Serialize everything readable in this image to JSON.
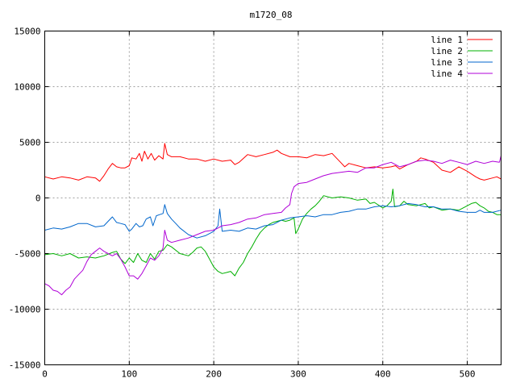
{
  "chart_data": {
    "type": "line",
    "title": "m1720_08",
    "xlabel": "",
    "ylabel": "",
    "xlim": [
      0,
      540
    ],
    "ylim": [
      -15000,
      15000
    ],
    "xticks": [
      0,
      100,
      200,
      300,
      400,
      500
    ],
    "yticks": [
      -15000,
      -10000,
      -5000,
      0,
      5000,
      10000,
      15000
    ],
    "grid": true,
    "legend_position": "top-right",
    "series": [
      {
        "name": "line 1",
        "color": "#ff0000",
        "points": [
          [
            0,
            1900
          ],
          [
            10,
            1700
          ],
          [
            20,
            1900
          ],
          [
            30,
            1800
          ],
          [
            40,
            1600
          ],
          [
            50,
            1900
          ],
          [
            60,
            1800
          ],
          [
            65,
            1500
          ],
          [
            70,
            2000
          ],
          [
            75,
            2600
          ],
          [
            80,
            3100
          ],
          [
            85,
            2800
          ],
          [
            90,
            2700
          ],
          [
            95,
            2700
          ],
          [
            100,
            2900
          ],
          [
            103,
            3600
          ],
          [
            108,
            3500
          ],
          [
            112,
            4000
          ],
          [
            115,
            3300
          ],
          [
            118,
            4200
          ],
          [
            122,
            3500
          ],
          [
            126,
            4000
          ],
          [
            130,
            3400
          ],
          [
            135,
            3800
          ],
          [
            140,
            3500
          ],
          [
            142,
            4900
          ],
          [
            145,
            3900
          ],
          [
            150,
            3700
          ],
          [
            160,
            3700
          ],
          [
            170,
            3500
          ],
          [
            180,
            3500
          ],
          [
            190,
            3300
          ],
          [
            200,
            3500
          ],
          [
            210,
            3300
          ],
          [
            220,
            3400
          ],
          [
            225,
            3000
          ],
          [
            230,
            3200
          ],
          [
            240,
            3900
          ],
          [
            250,
            3700
          ],
          [
            260,
            3900
          ],
          [
            270,
            4100
          ],
          [
            275,
            4300
          ],
          [
            280,
            4000
          ],
          [
            290,
            3700
          ],
          [
            300,
            3700
          ],
          [
            310,
            3600
          ],
          [
            320,
            3900
          ],
          [
            330,
            3800
          ],
          [
            340,
            4000
          ],
          [
            345,
            3600
          ],
          [
            350,
            3200
          ],
          [
            355,
            2800
          ],
          [
            360,
            3100
          ],
          [
            370,
            2900
          ],
          [
            380,
            2700
          ],
          [
            390,
            2800
          ],
          [
            400,
            2700
          ],
          [
            410,
            2800
          ],
          [
            415,
            2900
          ],
          [
            420,
            2600
          ],
          [
            430,
            3000
          ],
          [
            440,
            3300
          ],
          [
            445,
            3600
          ],
          [
            450,
            3500
          ],
          [
            460,
            3200
          ],
          [
            470,
            2500
          ],
          [
            480,
            2300
          ],
          [
            490,
            2800
          ],
          [
            500,
            2400
          ],
          [
            510,
            1900
          ],
          [
            515,
            1700
          ],
          [
            520,
            1600
          ],
          [
            530,
            1800
          ],
          [
            535,
            1900
          ],
          [
            540,
            1700
          ]
        ]
      },
      {
        "name": "line 2",
        "color": "#00b000",
        "points": [
          [
            0,
            -5100
          ],
          [
            10,
            -5000
          ],
          [
            20,
            -5200
          ],
          [
            30,
            -5000
          ],
          [
            40,
            -5400
          ],
          [
            50,
            -5300
          ],
          [
            60,
            -5400
          ],
          [
            70,
            -5200
          ],
          [
            80,
            -4900
          ],
          [
            85,
            -4800
          ],
          [
            90,
            -5500
          ],
          [
            95,
            -5900
          ],
          [
            100,
            -5400
          ],
          [
            105,
            -5800
          ],
          [
            110,
            -5000
          ],
          [
            115,
            -5600
          ],
          [
            120,
            -5800
          ],
          [
            125,
            -5000
          ],
          [
            130,
            -5500
          ],
          [
            135,
            -4800
          ],
          [
            140,
            -4700
          ],
          [
            145,
            -4200
          ],
          [
            150,
            -4400
          ],
          [
            160,
            -5000
          ],
          [
            170,
            -5200
          ],
          [
            175,
            -4900
          ],
          [
            180,
            -4500
          ],
          [
            185,
            -4400
          ],
          [
            190,
            -4800
          ],
          [
            195,
            -5500
          ],
          [
            200,
            -6200
          ],
          [
            205,
            -6600
          ],
          [
            210,
            -6800
          ],
          [
            215,
            -6700
          ],
          [
            220,
            -6600
          ],
          [
            225,
            -7000
          ],
          [
            230,
            -6300
          ],
          [
            235,
            -5800
          ],
          [
            240,
            -5000
          ],
          [
            245,
            -4400
          ],
          [
            250,
            -3700
          ],
          [
            255,
            -3100
          ],
          [
            260,
            -2700
          ],
          [
            265,
            -2400
          ],
          [
            270,
            -2200
          ],
          [
            275,
            -2100
          ],
          [
            280,
            -2000
          ],
          [
            285,
            -2100
          ],
          [
            290,
            -2000
          ],
          [
            295,
            -1800
          ],
          [
            297,
            -3200
          ],
          [
            300,
            -2800
          ],
          [
            305,
            -1900
          ],
          [
            310,
            -1400
          ],
          [
            315,
            -1000
          ],
          [
            320,
            -700
          ],
          [
            325,
            -300
          ],
          [
            330,
            200
          ],
          [
            340,
            0
          ],
          [
            350,
            100
          ],
          [
            360,
            0
          ],
          [
            370,
            -200
          ],
          [
            380,
            -100
          ],
          [
            385,
            -500
          ],
          [
            390,
            -400
          ],
          [
            400,
            -900
          ],
          [
            405,
            -700
          ],
          [
            410,
            -300
          ],
          [
            412,
            800
          ],
          [
            414,
            -800
          ],
          [
            420,
            -700
          ],
          [
            425,
            -300
          ],
          [
            430,
            -600
          ],
          [
            440,
            -700
          ],
          [
            450,
            -500
          ],
          [
            455,
            -900
          ],
          [
            460,
            -800
          ],
          [
            470,
            -1100
          ],
          [
            480,
            -1000
          ],
          [
            490,
            -1100
          ],
          [
            500,
            -700
          ],
          [
            505,
            -500
          ],
          [
            510,
            -400
          ],
          [
            515,
            -700
          ],
          [
            520,
            -900
          ],
          [
            525,
            -1200
          ],
          [
            530,
            -1300
          ],
          [
            535,
            -1500
          ],
          [
            540,
            -1500
          ]
        ]
      },
      {
        "name": "line 3",
        "color": "#0066cc",
        "points": [
          [
            0,
            -2900
          ],
          [
            10,
            -2700
          ],
          [
            20,
            -2800
          ],
          [
            30,
            -2600
          ],
          [
            40,
            -2300
          ],
          [
            50,
            -2300
          ],
          [
            60,
            -2600
          ],
          [
            70,
            -2500
          ],
          [
            75,
            -2100
          ],
          [
            80,
            -1700
          ],
          [
            85,
            -2200
          ],
          [
            90,
            -2300
          ],
          [
            95,
            -2400
          ],
          [
            100,
            -3000
          ],
          [
            103,
            -2800
          ],
          [
            108,
            -2300
          ],
          [
            112,
            -2600
          ],
          [
            116,
            -2500
          ],
          [
            120,
            -1900
          ],
          [
            125,
            -1700
          ],
          [
            128,
            -2500
          ],
          [
            132,
            -1600
          ],
          [
            136,
            -1500
          ],
          [
            140,
            -1400
          ],
          [
            142,
            -600
          ],
          [
            145,
            -1400
          ],
          [
            150,
            -1900
          ],
          [
            155,
            -2300
          ],
          [
            160,
            -2700
          ],
          [
            170,
            -3300
          ],
          [
            180,
            -3600
          ],
          [
            190,
            -3400
          ],
          [
            200,
            -3000
          ],
          [
            205,
            -2500
          ],
          [
            207,
            -1000
          ],
          [
            210,
            -3000
          ],
          [
            220,
            -2900
          ],
          [
            230,
            -3000
          ],
          [
            240,
            -2700
          ],
          [
            250,
            -2800
          ],
          [
            260,
            -2500
          ],
          [
            270,
            -2400
          ],
          [
            280,
            -2000
          ],
          [
            290,
            -1800
          ],
          [
            300,
            -1700
          ],
          [
            310,
            -1600
          ],
          [
            320,
            -1700
          ],
          [
            330,
            -1500
          ],
          [
            340,
            -1500
          ],
          [
            350,
            -1300
          ],
          [
            360,
            -1200
          ],
          [
            370,
            -1000
          ],
          [
            380,
            -1000
          ],
          [
            390,
            -800
          ],
          [
            400,
            -700
          ],
          [
            410,
            -800
          ],
          [
            420,
            -700
          ],
          [
            430,
            -500
          ],
          [
            440,
            -600
          ],
          [
            450,
            -800
          ],
          [
            460,
            -800
          ],
          [
            470,
            -1000
          ],
          [
            480,
            -1000
          ],
          [
            490,
            -1200
          ],
          [
            500,
            -1300
          ],
          [
            510,
            -1300
          ],
          [
            515,
            -1100
          ],
          [
            520,
            -1300
          ],
          [
            530,
            -1300
          ],
          [
            540,
            -1100
          ]
        ]
      },
      {
        "name": "line 4",
        "color": "#b000d8",
        "points": [
          [
            0,
            -7700
          ],
          [
            5,
            -7900
          ],
          [
            10,
            -8300
          ],
          [
            15,
            -8400
          ],
          [
            20,
            -8700
          ],
          [
            25,
            -8300
          ],
          [
            30,
            -8000
          ],
          [
            35,
            -7300
          ],
          [
            40,
            -6900
          ],
          [
            45,
            -6500
          ],
          [
            50,
            -5700
          ],
          [
            55,
            -5100
          ],
          [
            60,
            -4800
          ],
          [
            65,
            -4500
          ],
          [
            70,
            -4800
          ],
          [
            75,
            -5000
          ],
          [
            80,
            -5200
          ],
          [
            85,
            -5000
          ],
          [
            90,
            -5500
          ],
          [
            95,
            -6200
          ],
          [
            100,
            -7000
          ],
          [
            105,
            -7000
          ],
          [
            110,
            -7300
          ],
          [
            115,
            -6800
          ],
          [
            120,
            -6100
          ],
          [
            125,
            -5400
          ],
          [
            130,
            -5600
          ],
          [
            135,
            -5200
          ],
          [
            138,
            -4800
          ],
          [
            140,
            -4500
          ],
          [
            142,
            -2900
          ],
          [
            145,
            -3800
          ],
          [
            150,
            -4000
          ],
          [
            160,
            -3800
          ],
          [
            170,
            -3600
          ],
          [
            180,
            -3300
          ],
          [
            190,
            -3000
          ],
          [
            200,
            -2900
          ],
          [
            205,
            -2700
          ],
          [
            210,
            -2500
          ],
          [
            220,
            -2400
          ],
          [
            230,
            -2200
          ],
          [
            240,
            -1900
          ],
          [
            250,
            -1800
          ],
          [
            260,
            -1500
          ],
          [
            270,
            -1400
          ],
          [
            280,
            -1300
          ],
          [
            285,
            -900
          ],
          [
            290,
            -600
          ],
          [
            292,
            400
          ],
          [
            295,
            1000
          ],
          [
            300,
            1300
          ],
          [
            310,
            1400
          ],
          [
            320,
            1700
          ],
          [
            330,
            2000
          ],
          [
            340,
            2200
          ],
          [
            350,
            2300
          ],
          [
            360,
            2400
          ],
          [
            370,
            2300
          ],
          [
            380,
            2700
          ],
          [
            390,
            2700
          ],
          [
            400,
            3000
          ],
          [
            410,
            3200
          ],
          [
            420,
            2800
          ],
          [
            430,
            3000
          ],
          [
            440,
            3300
          ],
          [
            450,
            3400
          ],
          [
            460,
            3300
          ],
          [
            470,
            3100
          ],
          [
            480,
            3400
          ],
          [
            490,
            3200
          ],
          [
            500,
            3000
          ],
          [
            510,
            3300
          ],
          [
            520,
            3100
          ],
          [
            530,
            3300
          ],
          [
            538,
            3200
          ],
          [
            540,
            3800
          ]
        ]
      }
    ]
  }
}
